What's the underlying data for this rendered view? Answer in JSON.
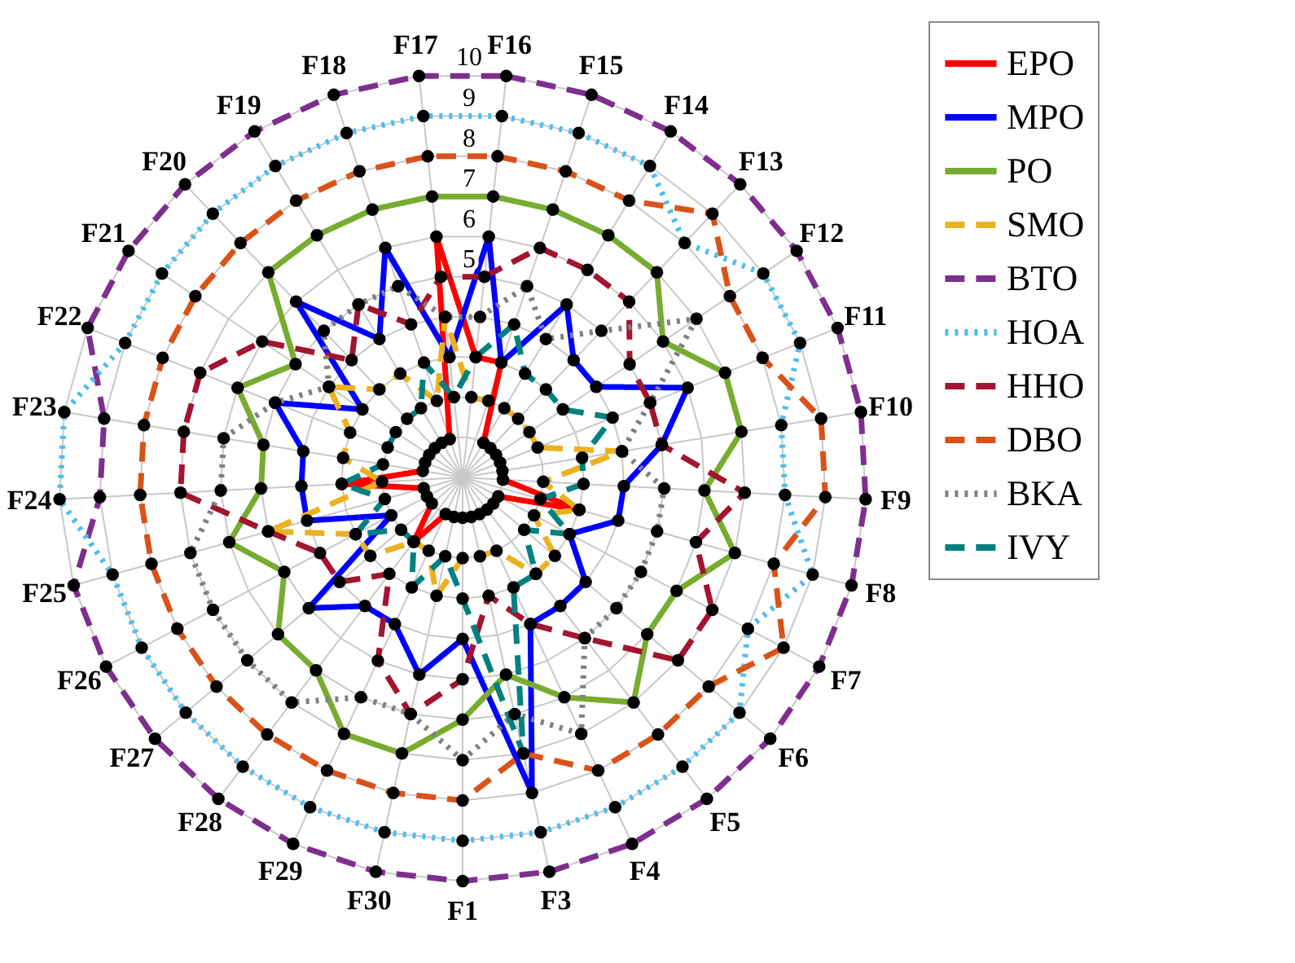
{
  "chart_data": {
    "type": "radar",
    "categories": [
      "F16",
      "F15",
      "F14",
      "F13",
      "F12",
      "F11",
      "F10",
      "F9",
      "F8",
      "F7",
      "F6",
      "F5",
      "F4",
      "F3",
      "F1",
      "F30",
      "F29",
      "F28",
      "F27",
      "F26",
      "F25",
      "F24",
      "F23",
      "F22",
      "F21",
      "F20",
      "F19",
      "F18",
      "F17"
    ],
    "ylim": [
      0,
      10
    ],
    "yticks": [
      5,
      6,
      7,
      8,
      9,
      10
    ],
    "grid": true,
    "legend": "right",
    "marker": "circle",
    "series": [
      {
        "name": "EPO",
        "color": "#ff0000",
        "line_style": "solid",
        "values": [
          3,
          3,
          1,
          1,
          1,
          1,
          1,
          1,
          3,
          1,
          1,
          1,
          1,
          1,
          1,
          1,
          1,
          2,
          1,
          1,
          1,
          3,
          1,
          1,
          1,
          1,
          1,
          1,
          6
        ]
      },
      {
        "name": "MPO",
        "color": "#0000ff",
        "line_style": "solid",
        "values": [
          6,
          3,
          5,
          4,
          4,
          6,
          5,
          4,
          4,
          3,
          4,
          4,
          4,
          8,
          4,
          5,
          4,
          4,
          5,
          2,
          4,
          4,
          4,
          5,
          3,
          6,
          4,
          6,
          3
        ]
      },
      {
        "name": "PO",
        "color": "#77ac30",
        "line_style": "solid",
        "values": [
          7,
          7,
          7,
          7,
          6,
          7,
          7,
          6,
          7,
          6,
          6,
          7,
          6,
          5,
          6,
          7,
          7,
          6,
          6,
          5,
          6,
          5,
          5,
          6,
          5,
          7,
          7,
          7,
          7
        ]
      },
      {
        "name": "SMO",
        "color": "#edb120",
        "line_style": "dashed",
        "values": [
          2,
          2,
          2,
          2,
          2,
          2,
          4,
          2,
          3,
          2,
          3,
          3,
          2,
          2,
          2,
          3,
          2,
          2,
          3,
          3,
          5,
          2,
          3,
          3,
          4,
          3,
          3,
          2,
          4
        ]
      },
      {
        "name": "BTO",
        "color": "#7e2f8e",
        "line_style": "dashed",
        "values": [
          10,
          10,
          10,
          10,
          10,
          10,
          10,
          10,
          10,
          10,
          10,
          10,
          10,
          10,
          10,
          10,
          10,
          10,
          10,
          10,
          10,
          9,
          9,
          10,
          10,
          10,
          10,
          10,
          10
        ]
      },
      {
        "name": "HOA",
        "color": "#4dbeee",
        "line_style": "dotted",
        "values": [
          9,
          9,
          9,
          8,
          9,
          9,
          8,
          8,
          9,
          8,
          9,
          9,
          9,
          9,
          9,
          9,
          9,
          9,
          9,
          9,
          9,
          10,
          10,
          9,
          9,
          9,
          9,
          9,
          9
        ]
      },
      {
        "name": "HHO",
        "color": "#a2142f",
        "line_style": "dashed",
        "values": [
          5,
          6,
          6,
          6,
          5,
          5,
          5,
          7,
          6,
          7,
          7,
          5,
          4,
          3,
          5,
          6,
          5,
          3,
          4,
          4,
          5,
          7,
          7,
          7,
          6,
          4,
          5,
          4,
          5
        ]
      },
      {
        "name": "DBO",
        "color": "#d95319",
        "line_style": "dashed",
        "values": [
          8,
          8,
          8,
          9,
          8,
          8,
          9,
          9,
          8,
          9,
          8,
          8,
          8,
          7,
          8,
          8,
          8,
          8,
          8,
          8,
          8,
          8,
          8,
          8,
          8,
          8,
          8,
          8,
          8
        ]
      },
      {
        "name": "BKA",
        "color": "#808080",
        "line_style": "dotted",
        "values": [
          4,
          5,
          4,
          5,
          7,
          5,
          4,
          5,
          5,
          5,
          5,
          5,
          7,
          6,
          7,
          6,
          6,
          7,
          7,
          7,
          7,
          6,
          6,
          5,
          4,
          5,
          5,
          5,
          4
        ]
      },
      {
        "name": "IVY",
        "color": "#008080",
        "line_style": "dashed",
        "values": [
          3,
          4,
          3,
          3,
          3,
          4,
          3,
          3,
          2,
          3,
          2,
          3,
          3,
          7,
          3,
          2,
          3,
          2,
          2,
          3,
          2,
          3,
          2,
          2,
          2,
          2,
          2,
          3,
          2
        ]
      }
    ]
  }
}
